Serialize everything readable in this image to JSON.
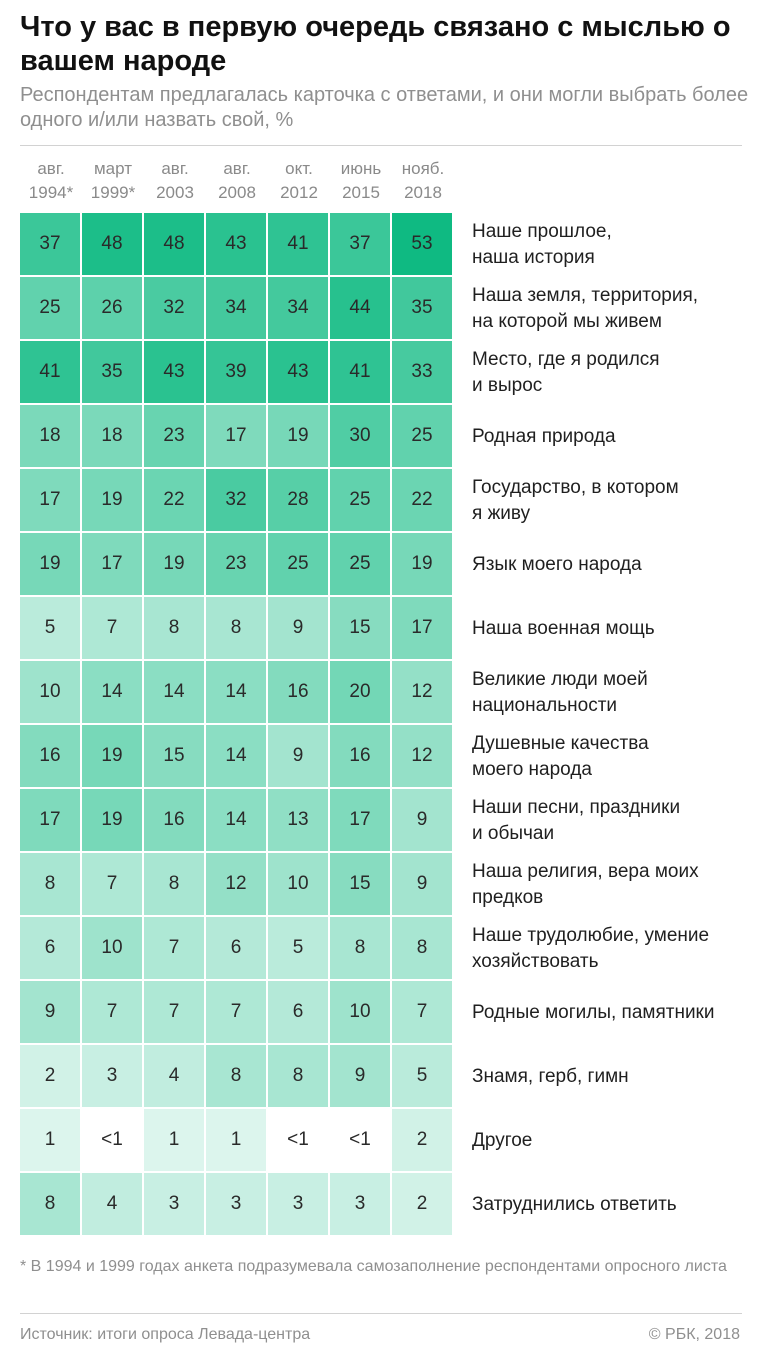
{
  "title": "Что у вас в первую очередь связано с мыслью о вашем народе",
  "subtitle": "Респондентам предлагалась карточка с ответами, и они могли выбрать более одного и/или назвать свой, %",
  "footnote": "* В 1994 и 1999 годах анкета подразумевала самозаполнение респондентами опросного листа",
  "source": "Источник: итоги опроса Левада-центра",
  "credit": "© РБК, 2018",
  "colors": {
    "scale_low": "#ffffff",
    "scale_high": "#0fba82"
  },
  "chart_data": {
    "type": "heatmap",
    "title": "Что у вас в первую очередь связано с мыслью о вашем народе",
    "subtitle": "Респондентам предлагалась карточка с ответами, и они могли выбрать более одного и/или назвать свой, %",
    "columns": [
      {
        "line1": "авг.",
        "line2": "1994*"
      },
      {
        "line1": "март",
        "line2": "1999*"
      },
      {
        "line1": "авг.",
        "line2": "2003"
      },
      {
        "line1": "авг.",
        "line2": "2008"
      },
      {
        "line1": "окт.",
        "line2": "2012"
      },
      {
        "line1": "июнь",
        "line2": "2015"
      },
      {
        "line1": "нояб.",
        "line2": "2018"
      }
    ],
    "rows": [
      {
        "label": [
          "Наше прошлое,",
          "наша история"
        ],
        "values": [
          37,
          48,
          48,
          43,
          41,
          37,
          53
        ],
        "display": [
          "37",
          "48",
          "48",
          "43",
          "41",
          "37",
          "53"
        ]
      },
      {
        "label": [
          "Наша земля, территория,",
          "на которой мы живем"
        ],
        "values": [
          25,
          26,
          32,
          34,
          34,
          44,
          35
        ],
        "display": [
          "25",
          "26",
          "32",
          "34",
          "34",
          "44",
          "35"
        ]
      },
      {
        "label": [
          "Место, где я родился",
          "и вырос"
        ],
        "values": [
          41,
          35,
          43,
          39,
          43,
          41,
          33
        ],
        "display": [
          "41",
          "35",
          "43",
          "39",
          "43",
          "41",
          "33"
        ]
      },
      {
        "label": [
          "Родная природа"
        ],
        "values": [
          18,
          18,
          23,
          17,
          19,
          30,
          25
        ],
        "display": [
          "18",
          "18",
          "23",
          "17",
          "19",
          "30",
          "25"
        ]
      },
      {
        "label": [
          "Государство, в котором",
          "я живу"
        ],
        "values": [
          17,
          19,
          22,
          32,
          28,
          25,
          22
        ],
        "display": [
          "17",
          "19",
          "22",
          "32",
          "28",
          "25",
          "22"
        ]
      },
      {
        "label": [
          "Язык моего народа"
        ],
        "values": [
          19,
          17,
          19,
          23,
          25,
          25,
          19
        ],
        "display": [
          "19",
          "17",
          "19",
          "23",
          "25",
          "25",
          "19"
        ]
      },
      {
        "label": [
          "Наша военная мощь"
        ],
        "values": [
          5,
          7,
          8,
          8,
          9,
          15,
          17
        ],
        "display": [
          "5",
          "7",
          "8",
          "8",
          "9",
          "15",
          "17"
        ]
      },
      {
        "label": [
          "Великие люди моей",
          "национальности"
        ],
        "values": [
          10,
          14,
          14,
          14,
          16,
          20,
          12
        ],
        "display": [
          "10",
          "14",
          "14",
          "14",
          "16",
          "20",
          "12"
        ]
      },
      {
        "label": [
          "Душевные качества",
          "моего народа"
        ],
        "values": [
          16,
          19,
          15,
          14,
          9,
          16,
          12
        ],
        "display": [
          "16",
          "19",
          "15",
          "14",
          "9",
          "16",
          "12"
        ]
      },
      {
        "label": [
          "Наши песни, праздники",
          "и обычаи"
        ],
        "values": [
          17,
          19,
          16,
          14,
          13,
          17,
          9
        ],
        "display": [
          "17",
          "19",
          "16",
          "14",
          "13",
          "17",
          "9"
        ]
      },
      {
        "label": [
          "Наша религия, вера моих",
          "предков"
        ],
        "values": [
          8,
          7,
          8,
          12,
          10,
          15,
          9
        ],
        "display": [
          "8",
          "7",
          "8",
          "12",
          "10",
          "15",
          "9"
        ]
      },
      {
        "label": [
          "Наше трудолюбие, умение",
          "хозяйствовать"
        ],
        "values": [
          6,
          10,
          7,
          6,
          5,
          8,
          8
        ],
        "display": [
          "6",
          "10",
          "7",
          "6",
          "5",
          "8",
          "8"
        ]
      },
      {
        "label": [
          "Родные могилы, памятники"
        ],
        "values": [
          9,
          7,
          7,
          7,
          6,
          10,
          7
        ],
        "display": [
          "9",
          "7",
          "7",
          "7",
          "6",
          "10",
          "7"
        ]
      },
      {
        "label": [
          "Знамя, герб, гимн"
        ],
        "values": [
          2,
          3,
          4,
          8,
          8,
          9,
          5
        ],
        "display": [
          "2",
          "3",
          "4",
          "8",
          "8",
          "9",
          "5"
        ]
      },
      {
        "label": [
          "Другое"
        ],
        "values": [
          1,
          0.5,
          1,
          1,
          0.5,
          0.5,
          2
        ],
        "display": [
          "1",
          "<1",
          "1",
          "1",
          "<1",
          "<1",
          "2"
        ]
      },
      {
        "label": [
          "Затруднились ответить"
        ],
        "values": [
          8,
          4,
          3,
          3,
          3,
          3,
          2
        ],
        "display": [
          "8",
          "4",
          "3",
          "3",
          "3",
          "3",
          "2"
        ]
      }
    ]
  }
}
